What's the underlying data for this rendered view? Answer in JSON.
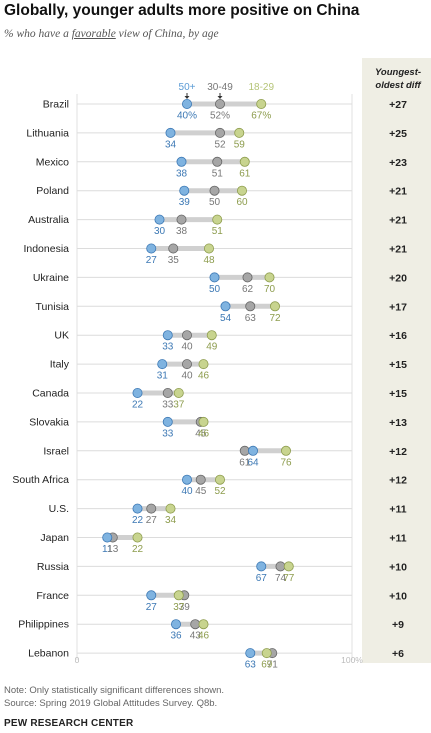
{
  "chart_data": {
    "type": "dot",
    "title": "Globally, younger adults more positive on China",
    "subtitle_pre": "% who have a ",
    "subtitle_em": "favorable",
    "subtitle_post": " view of China, by age",
    "series": [
      {
        "name": "50+",
        "color": "#5b9bd5"
      },
      {
        "name": "30-49",
        "color": "#a6a6a6"
      },
      {
        "name": "18-29",
        "color": "#b5c477"
      }
    ],
    "diff_header": [
      "Youngest-",
      "oldest diff"
    ],
    "x_axis": {
      "min": 0,
      "max": 100,
      "tick_min_label": "0",
      "tick_max_label": "100%"
    },
    "rows": [
      {
        "country": "Brazil",
        "old": 40,
        "mid": 52,
        "young": 67,
        "diff": "+27",
        "old_label": "40%",
        "mid_label": "52%",
        "young_label": "67%"
      },
      {
        "country": "Lithuania",
        "old": 34,
        "mid": 52,
        "young": 59,
        "diff": "+25",
        "old_label": "34",
        "mid_label": "52",
        "young_label": "59"
      },
      {
        "country": "Mexico",
        "old": 38,
        "mid": 51,
        "young": 61,
        "diff": "+23",
        "old_label": "38",
        "mid_label": "51",
        "young_label": "61"
      },
      {
        "country": "Poland",
        "old": 39,
        "mid": 50,
        "young": 60,
        "diff": "+21",
        "old_label": "39",
        "mid_label": "50",
        "young_label": "60"
      },
      {
        "country": "Australia",
        "old": 30,
        "mid": 38,
        "young": 51,
        "diff": "+21",
        "old_label": "30",
        "mid_label": "38",
        "young_label": "51"
      },
      {
        "country": "Indonesia",
        "old": 27,
        "mid": 35,
        "young": 48,
        "diff": "+21",
        "old_label": "27",
        "mid_label": "35",
        "young_label": "48"
      },
      {
        "country": "Ukraine",
        "old": 50,
        "mid": 62,
        "young": 70,
        "diff": "+20",
        "old_label": "50",
        "mid_label": "62",
        "young_label": "70"
      },
      {
        "country": "Tunisia",
        "old": 54,
        "mid": 63,
        "young": 72,
        "diff": "+17",
        "old_label": "54",
        "mid_label": "63",
        "young_label": "72"
      },
      {
        "country": "UK",
        "old": 33,
        "mid": 40,
        "young": 49,
        "diff": "+16",
        "old_label": "33",
        "mid_label": "40",
        "young_label": "49"
      },
      {
        "country": "Italy",
        "old": 31,
        "mid": 40,
        "young": 46,
        "diff": "+15",
        "old_label": "31",
        "mid_label": "40",
        "young_label": "46"
      },
      {
        "country": "Canada",
        "old": 22,
        "mid": 33,
        "young": 37,
        "diff": "+15",
        "old_label": "22",
        "mid_label": "33",
        "young_label": "37"
      },
      {
        "country": "Slovakia",
        "old": 33,
        "mid": 45,
        "young": 46,
        "diff": "+13",
        "old_label": "33",
        "mid_label": "45",
        "young_label": "46"
      },
      {
        "country": "Israel",
        "old": 64,
        "mid": 61,
        "young": 76,
        "diff": "+12",
        "old_label": "64",
        "mid_label": "61",
        "young_label": "76"
      },
      {
        "country": "South Africa",
        "old": 40,
        "mid": 45,
        "young": 52,
        "diff": "+12",
        "old_label": "40",
        "mid_label": "45",
        "young_label": "52"
      },
      {
        "country": "U.S.",
        "old": 22,
        "mid": 27,
        "young": 34,
        "diff": "+11",
        "old_label": "22",
        "mid_label": "27",
        "young_label": "34"
      },
      {
        "country": "Japan",
        "old": 11,
        "mid": 13,
        "young": 22,
        "diff": "+11",
        "old_label": "11",
        "mid_label": "13",
        "young_label": "22"
      },
      {
        "country": "Russia",
        "old": 67,
        "mid": 74,
        "young": 77,
        "diff": "+10",
        "old_label": "67",
        "mid_label": "74",
        "young_label": "77"
      },
      {
        "country": "France",
        "old": 27,
        "mid": 39,
        "young": 37,
        "diff": "+10",
        "old_label": "27",
        "mid_label": "39",
        "young_label": "37"
      },
      {
        "country": "Philippines",
        "old": 36,
        "mid": 43,
        "young": 46,
        "diff": "+9",
        "old_label": "36",
        "mid_label": "43",
        "young_label": "46"
      },
      {
        "country": "Lebanon",
        "old": 63,
        "mid": 71,
        "young": 69,
        "diff": "+6",
        "old_label": "63",
        "mid_label": "71",
        "young_label": "69"
      }
    ]
  },
  "footer": {
    "note": "Note: Only statistically significant differences shown.",
    "source": "Source: Spring 2019 Global Attitudes Survey. Q8b.",
    "brand": "PEW RESEARCH CENTER"
  }
}
